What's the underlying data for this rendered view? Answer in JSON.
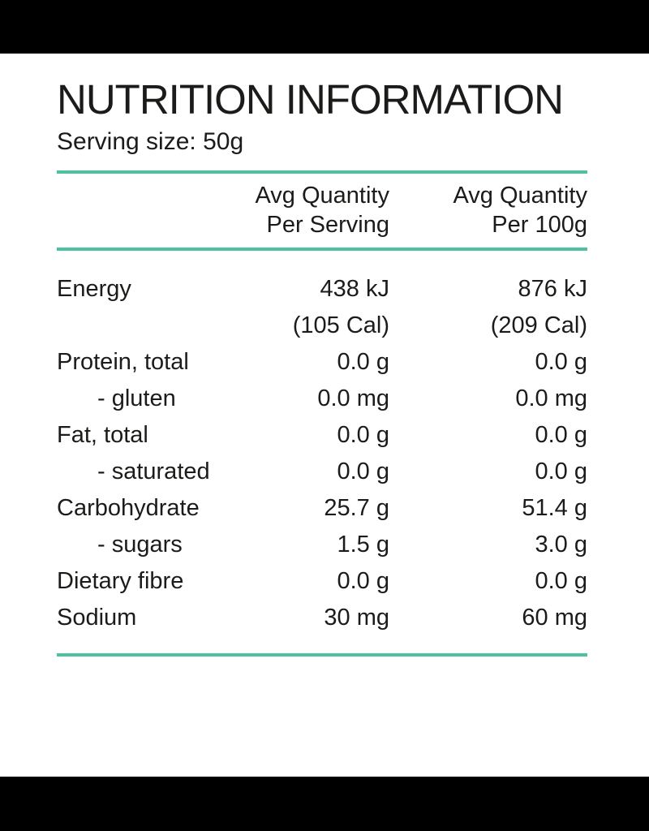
{
  "page": {
    "title": "NUTRITION INFORMATION",
    "serving_size": "Serving size: 50g"
  },
  "colors": {
    "accent_rule": "#4EC1A1",
    "text": "#1B1B19",
    "panel_background": "#FFFFFF",
    "letterbox_background": "#000000"
  },
  "table": {
    "header": {
      "per_serving": [
        "Avg Quantity",
        "Per Serving"
      ],
      "per_100g": [
        "Avg Quantity",
        "Per 100g"
      ]
    },
    "rows": [
      {
        "label": "Energy",
        "indent": false,
        "per_serving": "438 kJ",
        "per_100g": "876 kJ"
      },
      {
        "label": "",
        "indent": false,
        "per_serving": "(105 Cal)",
        "per_100g": "(209 Cal)"
      },
      {
        "label": "Protein, total",
        "indent": false,
        "per_serving": "0.0 g",
        "per_100g": "0.0 g"
      },
      {
        "label": "- gluten",
        "indent": true,
        "per_serving": "0.0 mg",
        "per_100g": "0.0 mg"
      },
      {
        "label": "Fat, total",
        "indent": false,
        "per_serving": "0.0 g",
        "per_100g": "0.0 g"
      },
      {
        "label": "- saturated",
        "indent": true,
        "per_serving": "0.0 g",
        "per_100g": "0.0 g"
      },
      {
        "label": "Carbohydrate",
        "indent": false,
        "per_serving": "25.7 g",
        "per_100g": "51.4 g"
      },
      {
        "label": "- sugars",
        "indent": true,
        "per_serving": "1.5 g",
        "per_100g": "3.0 g"
      },
      {
        "label": "Dietary fibre",
        "indent": false,
        "per_serving": "0.0 g",
        "per_100g": "0.0 g"
      },
      {
        "label": "Sodium",
        "indent": false,
        "per_serving": "30 mg",
        "per_100g": "60 mg"
      }
    ]
  }
}
